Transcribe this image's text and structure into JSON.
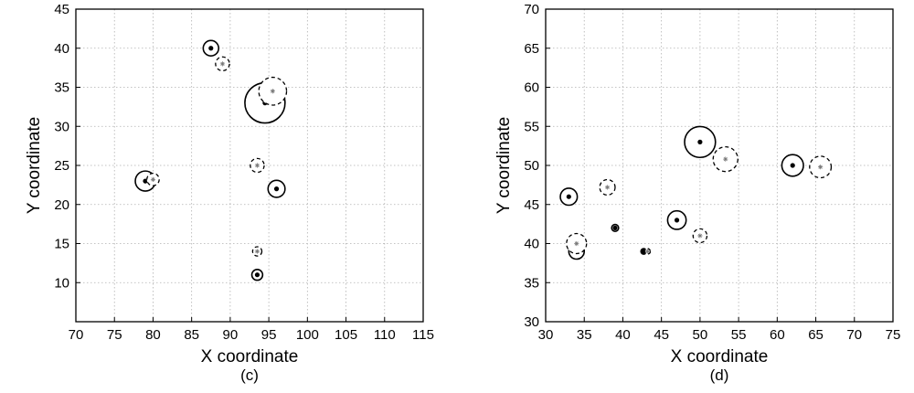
{
  "chart_data": [
    {
      "type": "scatter",
      "caption": "(c)",
      "xlabel": "X coordinate",
      "ylabel": "Y coordinate",
      "xlim": [
        70,
        115
      ],
      "ylim": [
        5,
        45
      ],
      "xticks": [
        70,
        75,
        80,
        85,
        90,
        95,
        100,
        105,
        110,
        115
      ],
      "yticks": [
        10,
        15,
        20,
        25,
        30,
        35,
        40,
        45
      ],
      "grid": true,
      "series": [
        {
          "marker": "solid-circle-with-dot",
          "points": [
            {
              "x": 87.5,
              "y": 40,
              "r": 1.0
            },
            {
              "x": 94.5,
              "y": 33,
              "r": 2.6
            },
            {
              "x": 79,
              "y": 23,
              "r": 1.3
            },
            {
              "x": 96,
              "y": 22,
              "r": 1.1
            },
            {
              "x": 93.5,
              "y": 11,
              "r": 0.7
            }
          ]
        },
        {
          "marker": "dashed-circle-with-star",
          "points": [
            {
              "x": 89,
              "y": 38,
              "r": 0.9
            },
            {
              "x": 95.5,
              "y": 34.5,
              "r": 1.8
            },
            {
              "x": 80,
              "y": 23.2,
              "r": 0.8
            },
            {
              "x": 93.5,
              "y": 25,
              "r": 0.9
            },
            {
              "x": 93.5,
              "y": 14,
              "r": 0.6
            }
          ]
        }
      ]
    },
    {
      "type": "scatter",
      "caption": "(d)",
      "xlabel": "X coordinate",
      "ylabel": "Y coordinate",
      "xlim": [
        30,
        75
      ],
      "ylim": [
        30,
        70
      ],
      "xticks": [
        30,
        35,
        40,
        45,
        50,
        55,
        60,
        65,
        70,
        75
      ],
      "yticks": [
        30,
        35,
        40,
        45,
        50,
        55,
        60,
        65,
        70
      ],
      "grid": true,
      "series": [
        {
          "marker": "solid-circle-with-dot",
          "points": [
            {
              "x": 33,
              "y": 46,
              "r": 1.1
            },
            {
              "x": 39,
              "y": 42,
              "r": 0.45
            },
            {
              "x": 34,
              "y": 39,
              "r": 1.0
            },
            {
              "x": 42.7,
              "y": 39,
              "r": 0.25
            },
            {
              "x": 47,
              "y": 43,
              "r": 1.2
            },
            {
              "x": 50,
              "y": 53,
              "r": 2.0
            },
            {
              "x": 62,
              "y": 50,
              "r": 1.4
            }
          ]
        },
        {
          "marker": "dashed-circle-with-star",
          "points": [
            {
              "x": 38,
              "y": 47.2,
              "r": 1.0
            },
            {
              "x": 34,
              "y": 40,
              "r": 1.3
            },
            {
              "x": 43.2,
              "y": 39,
              "r": 0.3
            },
            {
              "x": 50,
              "y": 41,
              "r": 0.9
            },
            {
              "x": 53.3,
              "y": 50.8,
              "r": 1.6
            },
            {
              "x": 65.6,
              "y": 49.8,
              "r": 1.4
            }
          ]
        }
      ]
    }
  ]
}
